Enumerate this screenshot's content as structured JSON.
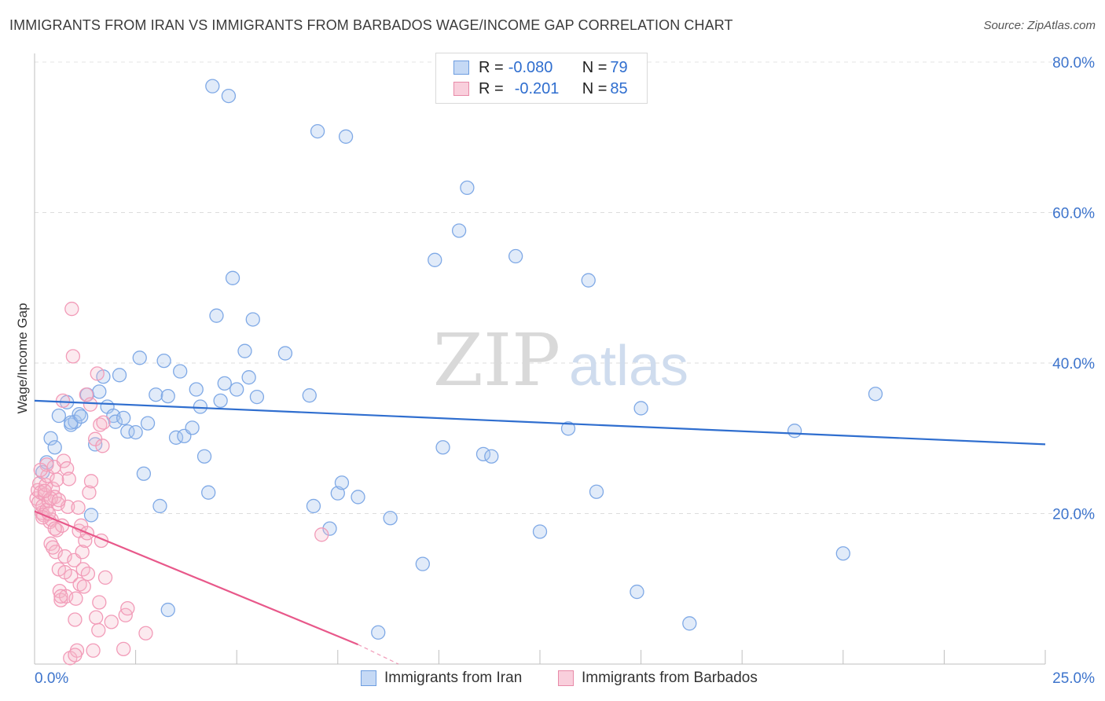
{
  "header": {
    "title": "IMMIGRANTS FROM IRAN VS IMMIGRANTS FROM BARBADOS WAGE/INCOME GAP CORRELATION CHART",
    "source": "Source: ZipAtlas.com"
  },
  "watermark": {
    "zip": "ZIP",
    "atlas": "atlas"
  },
  "legend": {
    "rows": [
      {
        "r_label": "R = ",
        "r_value": "-0.080",
        "n_label": "N = ",
        "n_value": "79",
        "color": "#a9c6ee",
        "border": "#6d9de0"
      },
      {
        "r_label": "R = ",
        "r_value": "-0.201",
        "n_label": "N = ",
        "n_value": "85",
        "color": "#f6b8cb",
        "border": "#e88aa8"
      }
    ]
  },
  "bottom_legend": {
    "iran": "Immigrants from Iran",
    "barbados": "Immigrants from Barbados"
  },
  "chart_data": {
    "type": "scatter",
    "title": "IMMIGRANTS FROM IRAN VS IMMIGRANTS FROM BARBADOS WAGE/INCOME GAP CORRELATION CHART",
    "xlabel": "",
    "ylabel": "Wage/Income Gap",
    "xlim": [
      0,
      25
    ],
    "ylim": [
      0,
      80
    ],
    "x_tick_labels": [
      "0.0%",
      "25.0%"
    ],
    "y_ticks": [
      20,
      40,
      60,
      80
    ],
    "y_tick_labels": [
      "20.0%",
      "40.0%",
      "60.0%",
      "80.0%"
    ],
    "grid": true,
    "series": [
      {
        "name": "Immigrants from Iran",
        "color": "#7fa9e6",
        "line_color": "#2f6ecf",
        "trend": {
          "x": [
            0,
            25
          ],
          "y": [
            35.0,
            29.2
          ]
        },
        "points": [
          [
            0.2,
            25.5
          ],
          [
            0.3,
            26.8
          ],
          [
            0.4,
            30.0
          ],
          [
            0.5,
            28.8
          ],
          [
            0.6,
            33.0
          ],
          [
            0.8,
            34.8
          ],
          [
            0.9,
            31.8
          ],
          [
            1.0,
            32.2
          ],
          [
            1.1,
            33.2
          ],
          [
            1.3,
            35.8
          ],
          [
            1.4,
            19.8
          ],
          [
            1.5,
            29.2
          ],
          [
            1.6,
            36.2
          ],
          [
            1.7,
            38.2
          ],
          [
            1.8,
            34.2
          ],
          [
            1.95,
            33.0
          ],
          [
            2.0,
            32.2
          ],
          [
            2.1,
            38.4
          ],
          [
            2.2,
            32.7
          ],
          [
            2.3,
            30.9
          ],
          [
            2.5,
            30.8
          ],
          [
            2.6,
            40.7
          ],
          [
            2.7,
            25.3
          ],
          [
            2.8,
            32.0
          ],
          [
            3.0,
            35.8
          ],
          [
            3.1,
            21.0
          ],
          [
            3.2,
            40.3
          ],
          [
            3.3,
            35.6
          ],
          [
            3.5,
            30.1
          ],
          [
            3.6,
            38.9
          ],
          [
            3.7,
            30.3
          ],
          [
            3.9,
            31.4
          ],
          [
            4.0,
            36.5
          ],
          [
            4.1,
            34.2
          ],
          [
            4.2,
            27.6
          ],
          [
            4.3,
            22.8
          ],
          [
            4.4,
            76.8
          ],
          [
            4.5,
            46.3
          ],
          [
            4.6,
            35.0
          ],
          [
            4.7,
            37.3
          ],
          [
            4.8,
            75.5
          ],
          [
            4.9,
            51.3
          ],
          [
            5.0,
            36.5
          ],
          [
            5.2,
            41.6
          ],
          [
            5.3,
            38.1
          ],
          [
            5.4,
            45.8
          ],
          [
            5.5,
            35.5
          ],
          [
            6.2,
            41.3
          ],
          [
            6.8,
            35.7
          ],
          [
            6.9,
            21.0
          ],
          [
            7.0,
            70.8
          ],
          [
            7.3,
            18.0
          ],
          [
            7.5,
            22.7
          ],
          [
            7.6,
            24.1
          ],
          [
            7.7,
            70.1
          ],
          [
            8.0,
            22.2
          ],
          [
            8.5,
            4.2
          ],
          [
            8.8,
            19.4
          ],
          [
            9.6,
            13.3
          ],
          [
            9.9,
            53.7
          ],
          [
            10.1,
            28.8
          ],
          [
            10.5,
            57.6
          ],
          [
            10.7,
            63.3
          ],
          [
            11.1,
            27.9
          ],
          [
            11.3,
            27.6
          ],
          [
            11.9,
            54.2
          ],
          [
            12.5,
            17.6
          ],
          [
            13.2,
            31.3
          ],
          [
            13.7,
            51.0
          ],
          [
            13.9,
            22.9
          ],
          [
            14.9,
            9.6
          ],
          [
            15.0,
            34.0
          ],
          [
            16.2,
            5.4
          ],
          [
            18.8,
            31.0
          ],
          [
            20.0,
            14.7
          ],
          [
            20.8,
            35.9
          ],
          [
            3.3,
            7.2
          ],
          [
            0.9,
            32.1
          ],
          [
            1.15,
            32.9
          ]
        ]
      },
      {
        "name": "Immigrants from Barbados",
        "color": "#f29bb8",
        "line_color": "#e8588a",
        "trend": {
          "x": [
            0,
            8.0
          ],
          "y": [
            20.3,
            2.6
          ]
        },
        "trend_dashed": {
          "x": [
            8.0,
            9.0
          ],
          "y": [
            2.6,
            0.0
          ]
        },
        "points": [
          [
            0.05,
            22.0
          ],
          [
            0.08,
            23.1
          ],
          [
            0.1,
            21.5
          ],
          [
            0.12,
            24.0
          ],
          [
            0.15,
            22.8
          ],
          [
            0.18,
            20.1
          ],
          [
            0.2,
            21.0
          ],
          [
            0.22,
            19.8
          ],
          [
            0.25,
            22.5
          ],
          [
            0.28,
            23.8
          ],
          [
            0.3,
            20.5
          ],
          [
            0.32,
            25.0
          ],
          [
            0.35,
            21.7
          ],
          [
            0.38,
            18.9
          ],
          [
            0.4,
            16.0
          ],
          [
            0.42,
            19.2
          ],
          [
            0.45,
            23.3
          ],
          [
            0.48,
            26.2
          ],
          [
            0.5,
            22.2
          ],
          [
            0.52,
            14.9
          ],
          [
            0.55,
            17.8
          ],
          [
            0.58,
            21.3
          ],
          [
            0.6,
            12.6
          ],
          [
            0.62,
            9.7
          ],
          [
            0.65,
            8.5
          ],
          [
            0.68,
            18.4
          ],
          [
            0.7,
            35.0
          ],
          [
            0.72,
            27.0
          ],
          [
            0.75,
            14.3
          ],
          [
            0.78,
            9.0
          ],
          [
            0.8,
            26.0
          ],
          [
            0.82,
            20.9
          ],
          [
            0.85,
            24.6
          ],
          [
            0.88,
            0.8
          ],
          [
            0.9,
            11.7
          ],
          [
            0.92,
            47.2
          ],
          [
            0.95,
            40.9
          ],
          [
            0.98,
            13.8
          ],
          [
            1.0,
            5.9
          ],
          [
            1.02,
            8.7
          ],
          [
            1.05,
            1.8
          ],
          [
            1.08,
            20.8
          ],
          [
            1.1,
            17.7
          ],
          [
            1.12,
            10.6
          ],
          [
            1.15,
            18.4
          ],
          [
            1.18,
            14.9
          ],
          [
            1.2,
            12.6
          ],
          [
            1.22,
            10.3
          ],
          [
            1.25,
            16.4
          ],
          [
            1.28,
            35.8
          ],
          [
            1.3,
            17.4
          ],
          [
            1.32,
            12.0
          ],
          [
            1.35,
            22.8
          ],
          [
            1.38,
            34.5
          ],
          [
            1.4,
            24.3
          ],
          [
            1.45,
            1.8
          ],
          [
            1.5,
            29.9
          ],
          [
            1.52,
            6.2
          ],
          [
            1.55,
            38.6
          ],
          [
            1.58,
            4.5
          ],
          [
            1.6,
            8.2
          ],
          [
            1.62,
            31.8
          ],
          [
            1.65,
            16.4
          ],
          [
            1.68,
            29.0
          ],
          [
            1.7,
            32.1
          ],
          [
            1.75,
            11.5
          ],
          [
            1.9,
            5.6
          ],
          [
            2.2,
            2.0
          ],
          [
            2.25,
            6.5
          ],
          [
            2.3,
            7.4
          ],
          [
            2.75,
            4.1
          ],
          [
            7.1,
            17.2
          ],
          [
            0.2,
            19.5
          ],
          [
            0.3,
            26.5
          ],
          [
            0.4,
            22.0
          ],
          [
            0.55,
            24.5
          ],
          [
            0.6,
            21.8
          ],
          [
            0.35,
            20.0
          ],
          [
            0.15,
            25.8
          ],
          [
            0.25,
            23.0
          ],
          [
            0.45,
            15.5
          ],
          [
            0.5,
            18.0
          ],
          [
            0.65,
            9.0
          ],
          [
            0.75,
            12.2
          ],
          [
            1.0,
            1.2
          ]
        ]
      }
    ]
  }
}
